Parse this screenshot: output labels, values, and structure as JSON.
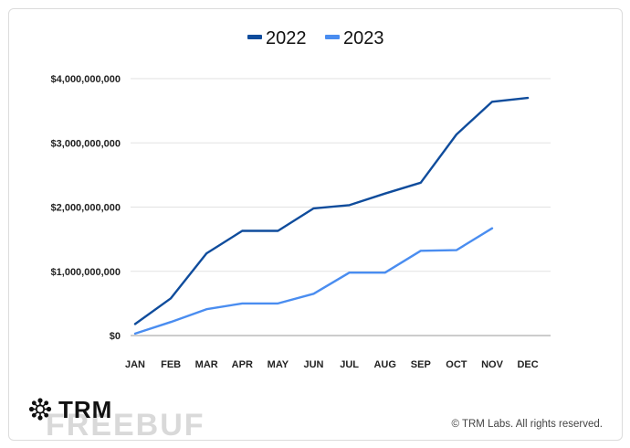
{
  "chart_data": {
    "type": "line",
    "title": "",
    "xlabel": "",
    "ylabel": "",
    "categories": [
      "JAN",
      "FEB",
      "MAR",
      "APR",
      "MAY",
      "JUN",
      "JUL",
      "AUG",
      "SEP",
      "OCT",
      "NOV",
      "DEC"
    ],
    "ylim": [
      0,
      4000000000
    ],
    "yticks": [
      0,
      1000000000,
      2000000000,
      3000000000,
      4000000000
    ],
    "ytick_labels": [
      "$0",
      "$1,000,000,000",
      "$2,000,000,000",
      "$3,000,000,000",
      "$4,000,000,000"
    ],
    "grid": true,
    "legend_position": "top-center",
    "series": [
      {
        "name": "2022",
        "color": "#0f4c9c",
        "values": [
          180000000,
          580000000,
          1280000000,
          1630000000,
          1630000000,
          1980000000,
          2030000000,
          2210000000,
          2380000000,
          3130000000,
          3640000000,
          3700000000
        ]
      },
      {
        "name": "2023",
        "color": "#4a8df0",
        "values": [
          30000000,
          210000000,
          410000000,
          500000000,
          500000000,
          650000000,
          980000000,
          980000000,
          1320000000,
          1330000000,
          1670000000,
          null
        ]
      }
    ]
  },
  "brand": {
    "name": "TRM"
  },
  "watermark": "FREEBUF",
  "copyright": "© TRM Labs. All rights reserved."
}
